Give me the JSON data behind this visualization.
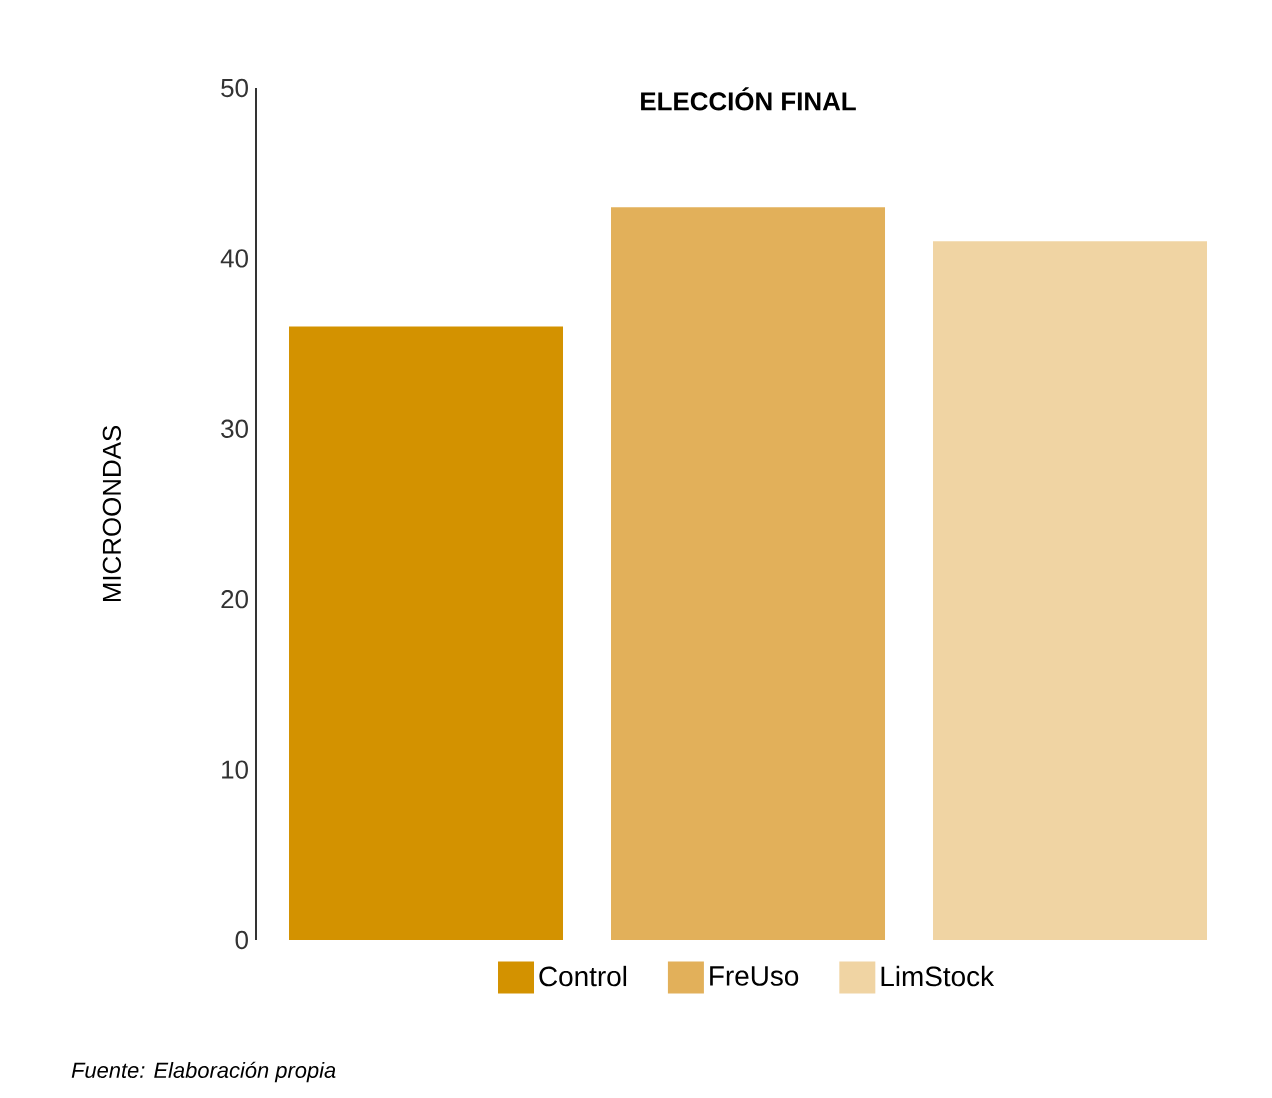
{
  "chart_data": {
    "type": "bar",
    "title": "ELECCIÓN FINAL",
    "ylabel": "MICROONDAS",
    "categories": [
      null
    ],
    "series": [
      {
        "name": "Control",
        "color": "#d39200",
        "values": [
          36
        ]
      },
      {
        "name": "FreUso",
        "color": "#e2b05a",
        "values": [
          43
        ]
      },
      {
        "name": "LimStock",
        "color": "#f0d4a3",
        "values": [
          41
        ]
      }
    ],
    "ylim": [
      0,
      50
    ],
    "yticks": [
      0,
      10,
      20,
      30,
      40,
      50
    ],
    "legend": "bottom",
    "grid": false,
    "annotations": [
      "Fuente: Elaboración propia"
    ]
  }
}
